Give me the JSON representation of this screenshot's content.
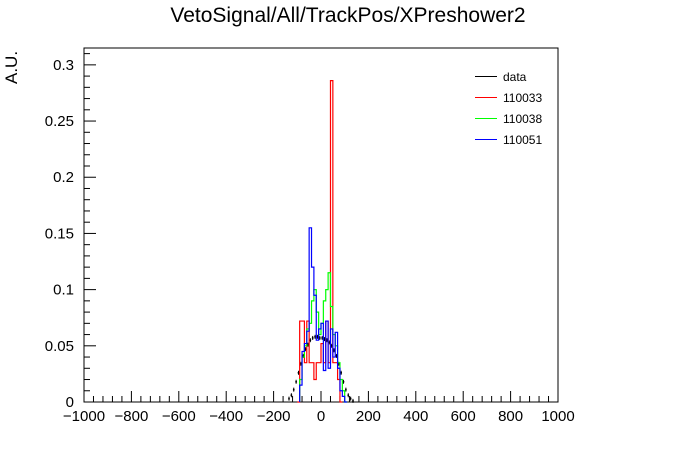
{
  "chart_data": {
    "type": "histogram",
    "title": "VetoSignal/All/TrackPos/XPreshower2",
    "xlabel": "",
    "ylabel": "A.U.",
    "xlim": [
      -1000,
      1000
    ],
    "ylim": [
      0,
      0.315
    ],
    "bin_width": 10,
    "x_ticks": [
      "−1000",
      "−800",
      "−600",
      "−400",
      "−200",
      "0",
      "200",
      "400",
      "600",
      "800",
      "1000"
    ],
    "y_ticks": [
      "0",
      "0.05",
      "0.1",
      "0.15",
      "0.2",
      "0.25",
      "0.3"
    ],
    "legend_position": "top-right",
    "series": [
      {
        "name": "data",
        "color": "#000000",
        "style": "points",
        "x": [
          -140,
          -130,
          -120,
          -110,
          -100,
          -90,
          -80,
          -70,
          -60,
          -50,
          -40,
          -30,
          -20,
          -10,
          0,
          10,
          20,
          30,
          40,
          50,
          60,
          70,
          80,
          90,
          100,
          110,
          120,
          130
        ],
        "values": [
          0.003,
          0.006,
          0.011,
          0.018,
          0.026,
          0.034,
          0.041,
          0.047,
          0.051,
          0.055,
          0.057,
          0.058,
          0.058,
          0.057,
          0.057,
          0.056,
          0.055,
          0.053,
          0.05,
          0.046,
          0.041,
          0.034,
          0.026,
          0.018,
          0.011,
          0.006,
          0.003,
          0.001
        ]
      },
      {
        "name": "110033",
        "color": "#ff0000",
        "style": "step",
        "x": [
          -100,
          -90,
          -80,
          -70,
          -60,
          -50,
          -40,
          -30,
          -20,
          -10,
          0,
          10,
          20,
          30,
          40,
          50,
          60,
          70,
          80
        ],
        "values": [
          0.0,
          0.072,
          0.072,
          0.035,
          0.072,
          0.035,
          0.035,
          0.02,
          0.035,
          0.035,
          0.052,
          0.035,
          0.072,
          0.035,
          0.286,
          0.035,
          0.035,
          0.02,
          0.0
        ]
      },
      {
        "name": "110038",
        "color": "#00ff00",
        "style": "step",
        "x": [
          -90,
          -80,
          -70,
          -60,
          -50,
          -40,
          -30,
          -20,
          -10,
          0,
          10,
          20,
          30,
          40,
          50,
          60,
          70,
          80,
          90,
          100
        ],
        "values": [
          0.02,
          0.04,
          0.05,
          0.065,
          0.07,
          0.09,
          0.1,
          0.08,
          0.06,
          0.07,
          0.09,
          0.1,
          0.115,
          0.085,
          0.06,
          0.05,
          0.035,
          0.02,
          0.01,
          0.0
        ]
      },
      {
        "name": "110051",
        "color": "#0000ff",
        "style": "step",
        "x": [
          -90,
          -80,
          -70,
          -60,
          -50,
          -40,
          -30,
          -20,
          -10,
          0,
          10,
          20,
          30,
          40,
          50,
          60,
          70,
          80,
          90,
          100
        ],
        "values": [
          0.015,
          0.045,
          0.052,
          0.063,
          0.155,
          0.12,
          0.095,
          0.055,
          0.065,
          0.07,
          0.028,
          0.072,
          0.03,
          0.065,
          0.04,
          0.062,
          0.03,
          0.01,
          0.005,
          0.0
        ]
      }
    ]
  }
}
